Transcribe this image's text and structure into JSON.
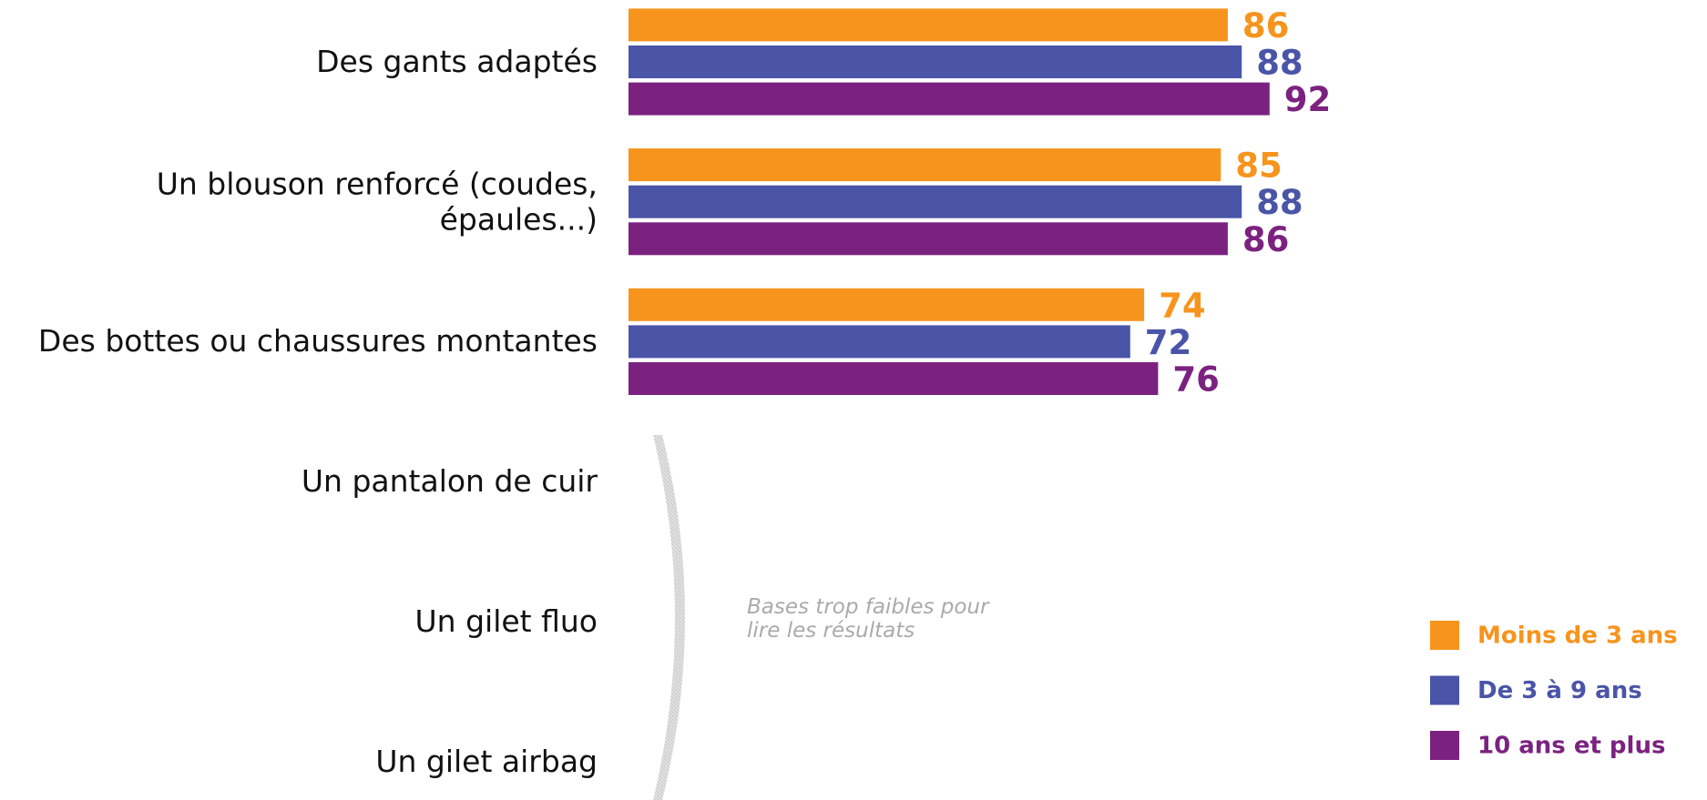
{
  "chart_data": {
    "type": "barh",
    "categories": [
      "Des gants adaptés",
      "Un blouson renforcé (coudes, épaules...)",
      "Des bottes ou chaussures montantes",
      "Un pantalon de cuir",
      "Un gilet fluo",
      "Un gilet airbag"
    ],
    "series": [
      {
        "name": "Moins de 3 ans",
        "color": "#F7941D",
        "values": [
          86,
          85,
          74,
          null,
          null,
          null
        ]
      },
      {
        "name": "De 3 à 9 ans",
        "color": "#4A55A8",
        "values": [
          88,
          88,
          72,
          null,
          null,
          null
        ]
      },
      {
        "name": "10 ans et plus",
        "color": "#7B2280",
        "values": [
          92,
          86,
          76,
          null,
          null,
          null
        ]
      }
    ],
    "xlim": [
      0,
      100
    ],
    "annotation": "Bases trop faibles pour lire les résultats",
    "legend": "lower right"
  }
}
